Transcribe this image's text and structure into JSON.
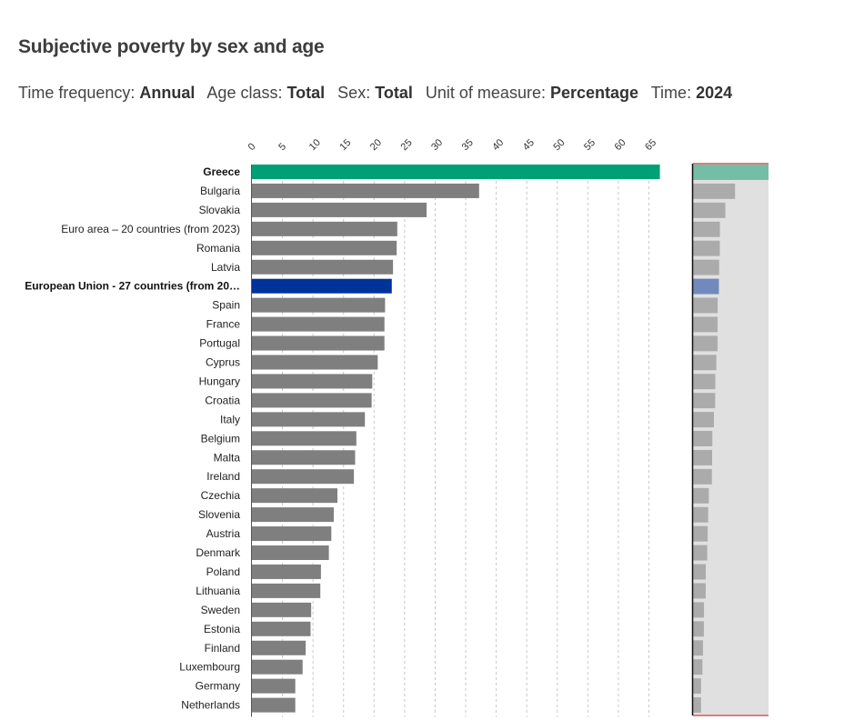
{
  "header": {
    "title": "Subjective poverty by sex and age",
    "filters": [
      {
        "label": "Time frequency:",
        "value": "Annual"
      },
      {
        "label": "Age class:",
        "value": "Total"
      },
      {
        "label": "Sex:",
        "value": "Total"
      },
      {
        "label": "Unit of measure:",
        "value": "Percentage"
      },
      {
        "label": "Time:",
        "value": "2024"
      }
    ]
  },
  "colors": {
    "highlight_top": "#00a075",
    "highlight_eu": "#003399",
    "default_bar": "#7f7f7f",
    "minimap_bg": "#e0e0e0",
    "minimap_bar": "#ababab",
    "minimap_top": "#74bea7",
    "minimap_eu": "#7189bd",
    "minimap_border": "#d98080",
    "gridline": "#c8c8c8"
  },
  "chart_data": {
    "type": "bar",
    "orientation": "horizontal",
    "title": "Subjective poverty by sex and age",
    "xlabel": "",
    "ylabel": "",
    "xlim": [
      0,
      67
    ],
    "x_ticks": [
      0,
      5,
      10,
      15,
      20,
      25,
      30,
      35,
      40,
      45,
      50,
      55,
      60,
      65
    ],
    "x_axis_position": "top",
    "grid": true,
    "categories": [
      "Greece",
      "Bulgaria",
      "Slovakia",
      "Euro area – 20 countries (from 2023)",
      "Romania",
      "Latvia",
      "European Union - 27 countries (from 20…",
      "Spain",
      "France",
      "Portugal",
      "Cyprus",
      "Hungary",
      "Croatia",
      "Italy",
      "Belgium",
      "Malta",
      "Ireland",
      "Czechia",
      "Slovenia",
      "Austria",
      "Denmark",
      "Poland",
      "Lithuania",
      "Sweden",
      "Estonia",
      "Finland",
      "Luxembourg",
      "Germany",
      "Netherlands"
    ],
    "values": [
      66.8,
      37.2,
      28.6,
      23.8,
      23.7,
      23.1,
      22.9,
      21.8,
      21.7,
      21.7,
      20.6,
      19.7,
      19.6,
      18.5,
      17.1,
      16.9,
      16.7,
      14.0,
      13.4,
      13.0,
      12.6,
      11.3,
      11.2,
      9.7,
      9.6,
      8.8,
      8.3,
      7.1,
      7.1
    ],
    "highlight": {
      "Greece": "top",
      "European Union - 27 countries (from 20…": "eu"
    },
    "bold_categories": [
      "Greece",
      "European Union - 27 countries (from 20…"
    ],
    "minimap": true
  }
}
